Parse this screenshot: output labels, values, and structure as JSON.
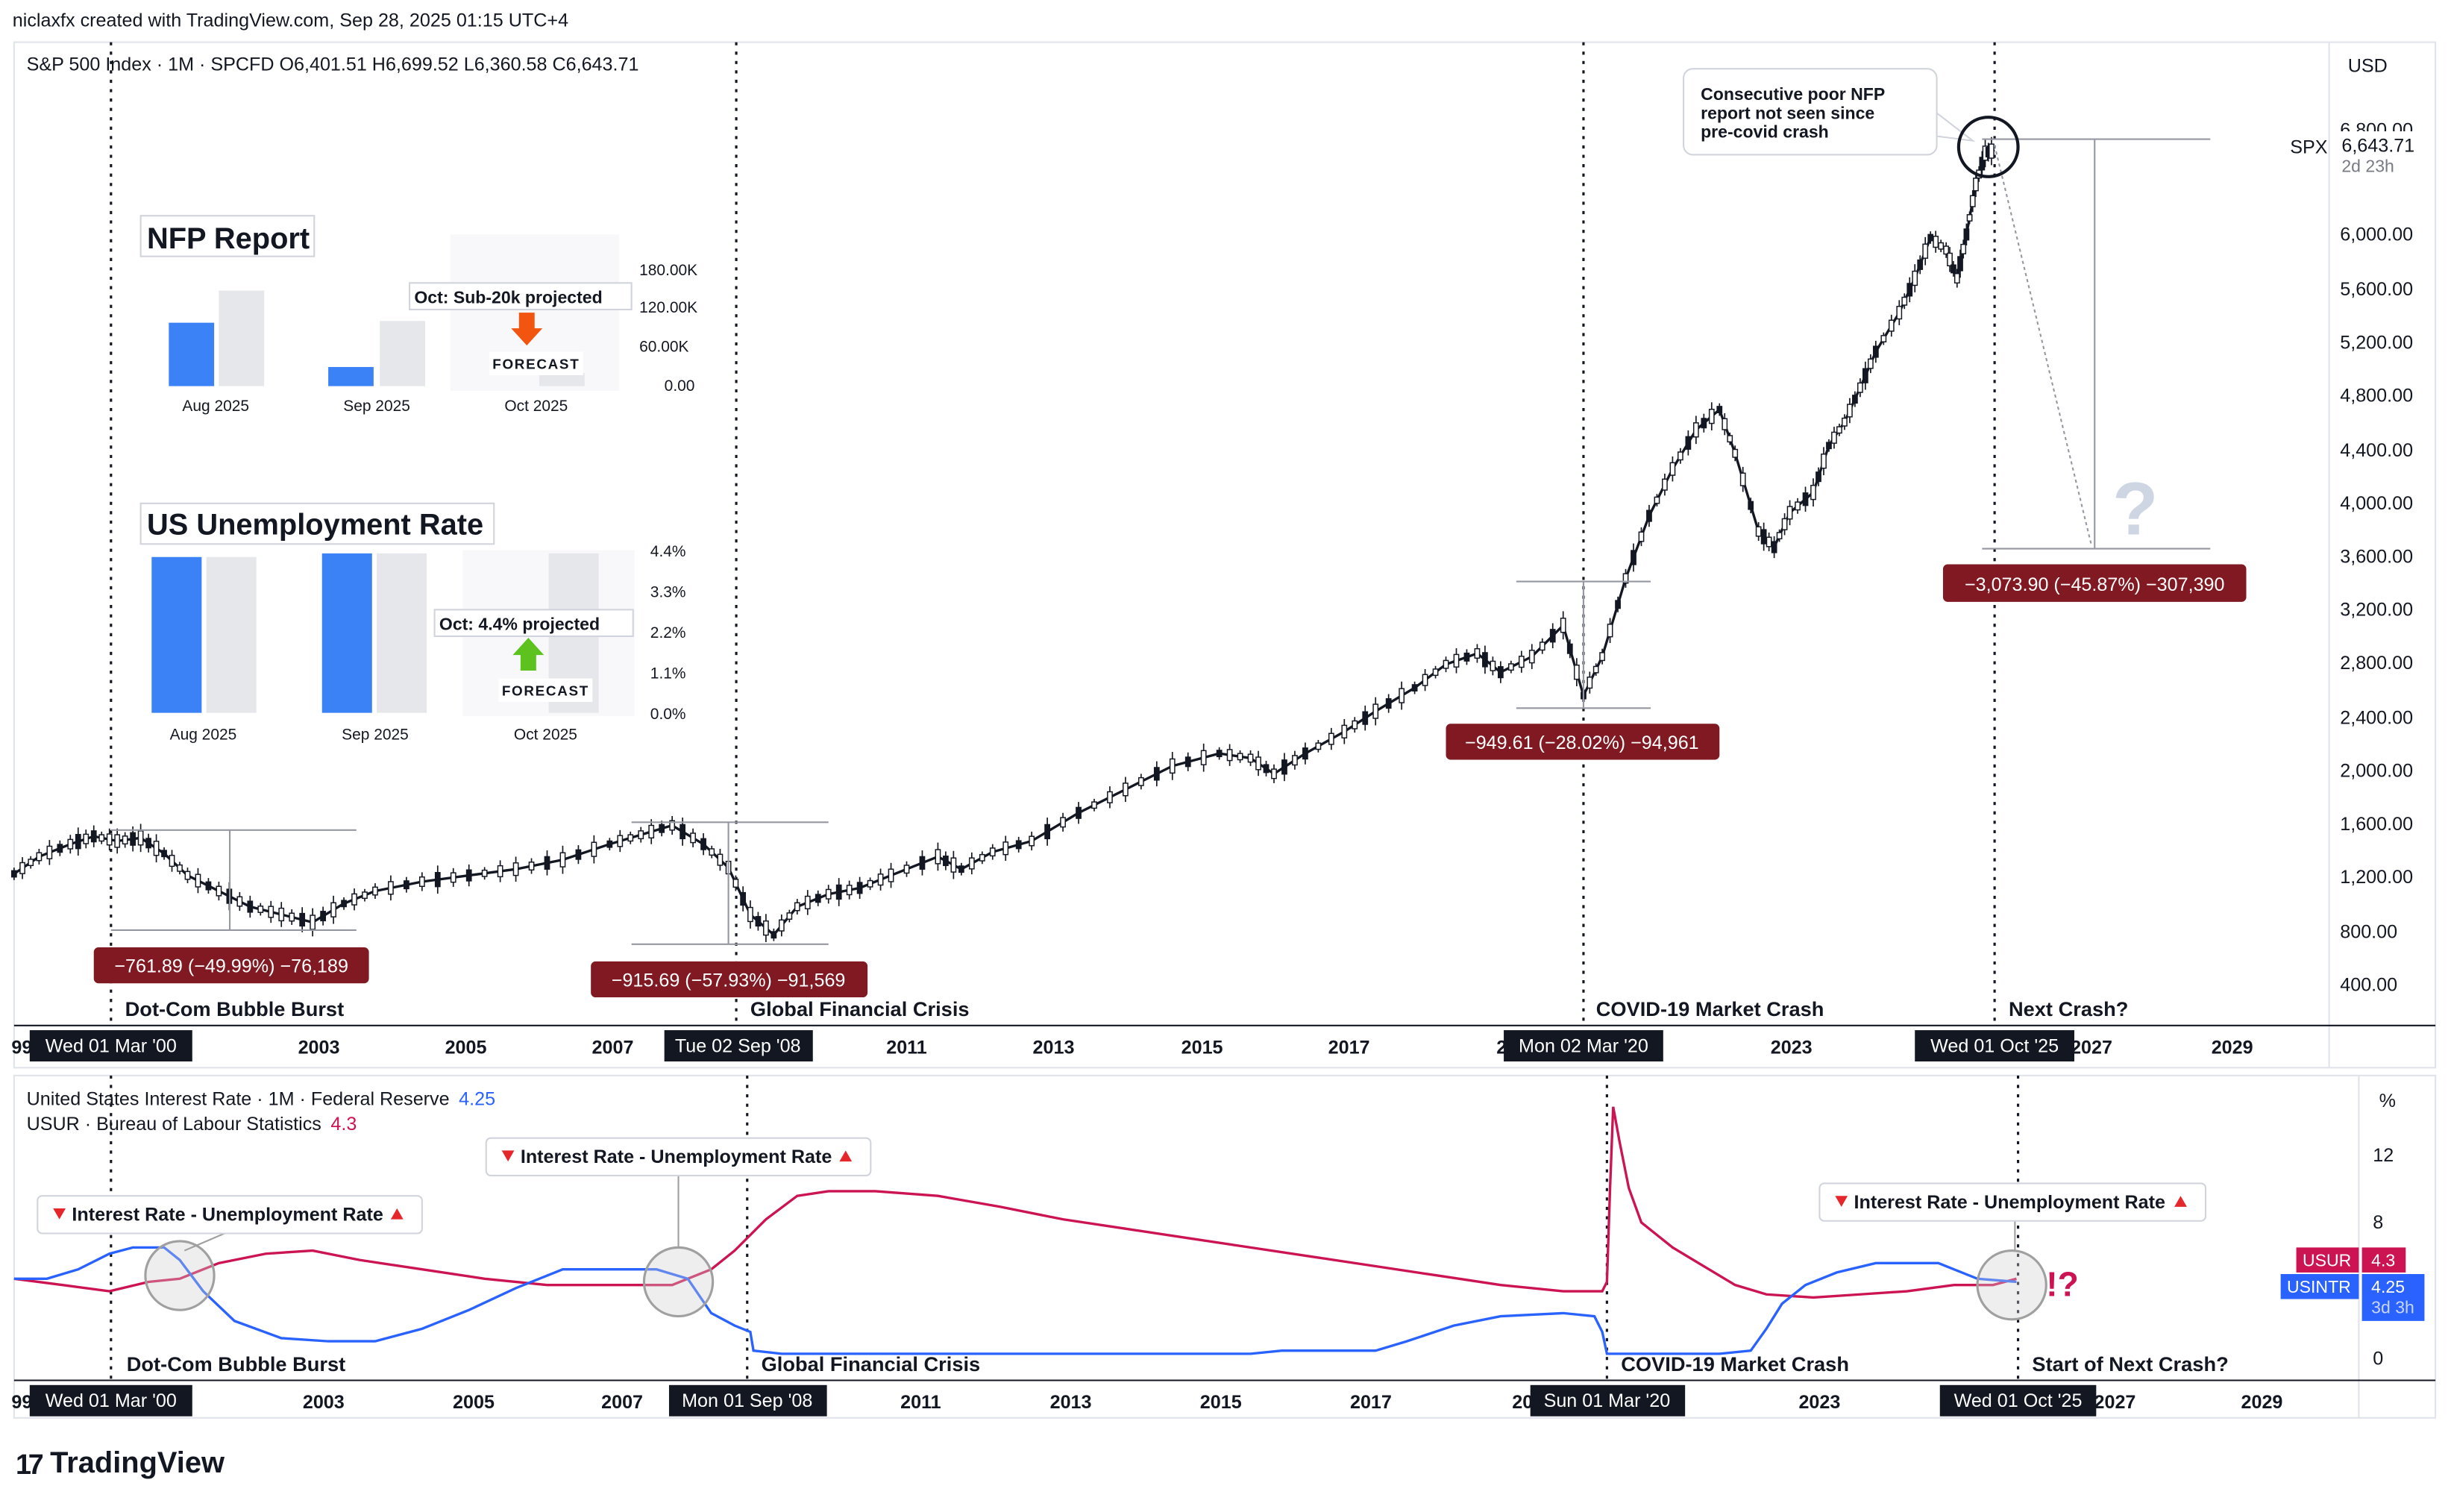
{
  "header": {
    "created_by": "niclaxfx created with TradingView.com, Sep 28, 2025 01:15 UTC+4"
  },
  "brand": {
    "logo_text": "TradingView",
    "logo_mark": "17"
  },
  "main_chart": {
    "legend": "S&P 500 Index · 1M · SPCFD  O6,401.51  H6,699.52  L6,360.58  C6,643.71",
    "currency": "USD",
    "symbol_tag": "SPX",
    "last_price": "6,643.71",
    "countdown": "2d 23h",
    "y_ticks": [
      "6,800.00",
      "6,000.00",
      "5,600.00",
      "5,200.00",
      "4,800.00",
      "4,400.00",
      "4,000.00",
      "3,600.00",
      "3,200.00",
      "2,800.00",
      "2,400.00",
      "2,000.00",
      "1,600.00",
      "1,200.00",
      "800.00",
      "400.00"
    ],
    "x_ticks": [
      "99",
      "2003",
      "2005",
      "2007",
      "2011",
      "2013",
      "2015",
      "2017",
      "20",
      "2023",
      "2027",
      "2029"
    ],
    "date_markers": [
      "Wed 01 Mar '00",
      "Tue 02 Sep '08",
      "Mon 02 Mar '20",
      "Wed 01 Oct '25"
    ],
    "crash_labels": [
      "Dot-Com Bubble Burst",
      "Global Financial Crisis",
      "COVID-19 Market Crash",
      "Next Crash?"
    ],
    "measurements": [
      "−761.89 (−49.99%) −76,189",
      "−915.69 (−57.93%) −91,569",
      "−949.61 (−28.02%) −94,961",
      "−3,073.90 (−45.87%) −307,390"
    ],
    "callout": [
      "Consecutive poor NFP",
      "report not seen since",
      "pre-covid crash"
    ],
    "question_mark": "?"
  },
  "nfp_widget": {
    "title": "NFP Report",
    "note": "Oct: Sub-20k projected",
    "forecast_label": "FORECAST",
    "months": [
      "Aug 2025",
      "Sep 2025",
      "Oct 2025"
    ],
    "y_ticks": [
      "180.00K",
      "120.00K",
      "60.00K",
      "0.00"
    ],
    "actual": [
      73,
      22,
      null
    ],
    "forecast": [
      110,
      75,
      15
    ],
    "actual_color": "#3b82f6",
    "forecast_color": "#e5e7eb",
    "arrow_color": "#f2550f"
  },
  "unemployment_widget": {
    "title": "US Unemployment Rate",
    "note": "Oct: 4.4% projected",
    "forecast_label": "FORECAST",
    "months": [
      "Aug 2025",
      "Sep 2025",
      "Oct 2025"
    ],
    "y_ticks": [
      "4.4%",
      "3.3%",
      "2.2%",
      "1.1%",
      "0.0%"
    ],
    "actual": [
      4.3,
      4.4,
      null
    ],
    "forecast": [
      4.3,
      4.4,
      4.4
    ],
    "actual_color": "#3b82f6",
    "forecast_color": "#e5e7eb",
    "arrow_color": "#5dc21e"
  },
  "lower_chart": {
    "legend_1_name": "United States Interest Rate · 1M · Federal Reserve",
    "legend_1_value": "4.25",
    "legend_2_name": "USUR · Bureau of Labour Statistics",
    "legend_2_value": "4.3",
    "unit": "%",
    "y_ticks": [
      "12",
      "8",
      "0"
    ],
    "x_ticks": [
      "99",
      "2003",
      "2005",
      "2007",
      "2011",
      "2013",
      "2015",
      "2017",
      "20",
      "2023",
      "2027",
      "2029"
    ],
    "date_markers": [
      "Wed 01 Mar '00",
      "Mon 01 Sep '08",
      "Sun 01 Mar '20",
      "Wed 01 Oct '25"
    ],
    "crash_labels": [
      "Dot-Com Bubble Burst",
      "Global Financial Crisis",
      "COVID-19 Market Crash",
      "Start of Next Crash?"
    ],
    "callout_text": "Interest Rate - Unemployment Rate",
    "alert": "!?",
    "usur_tag": "USUR",
    "usur_value": "4.3",
    "usintr_tag": "USINTR",
    "usintr_value": "4.25",
    "usintr_countdown": "3d 3h",
    "usur_color": "#cc1453",
    "usintr_color": "#2962ff"
  }
}
